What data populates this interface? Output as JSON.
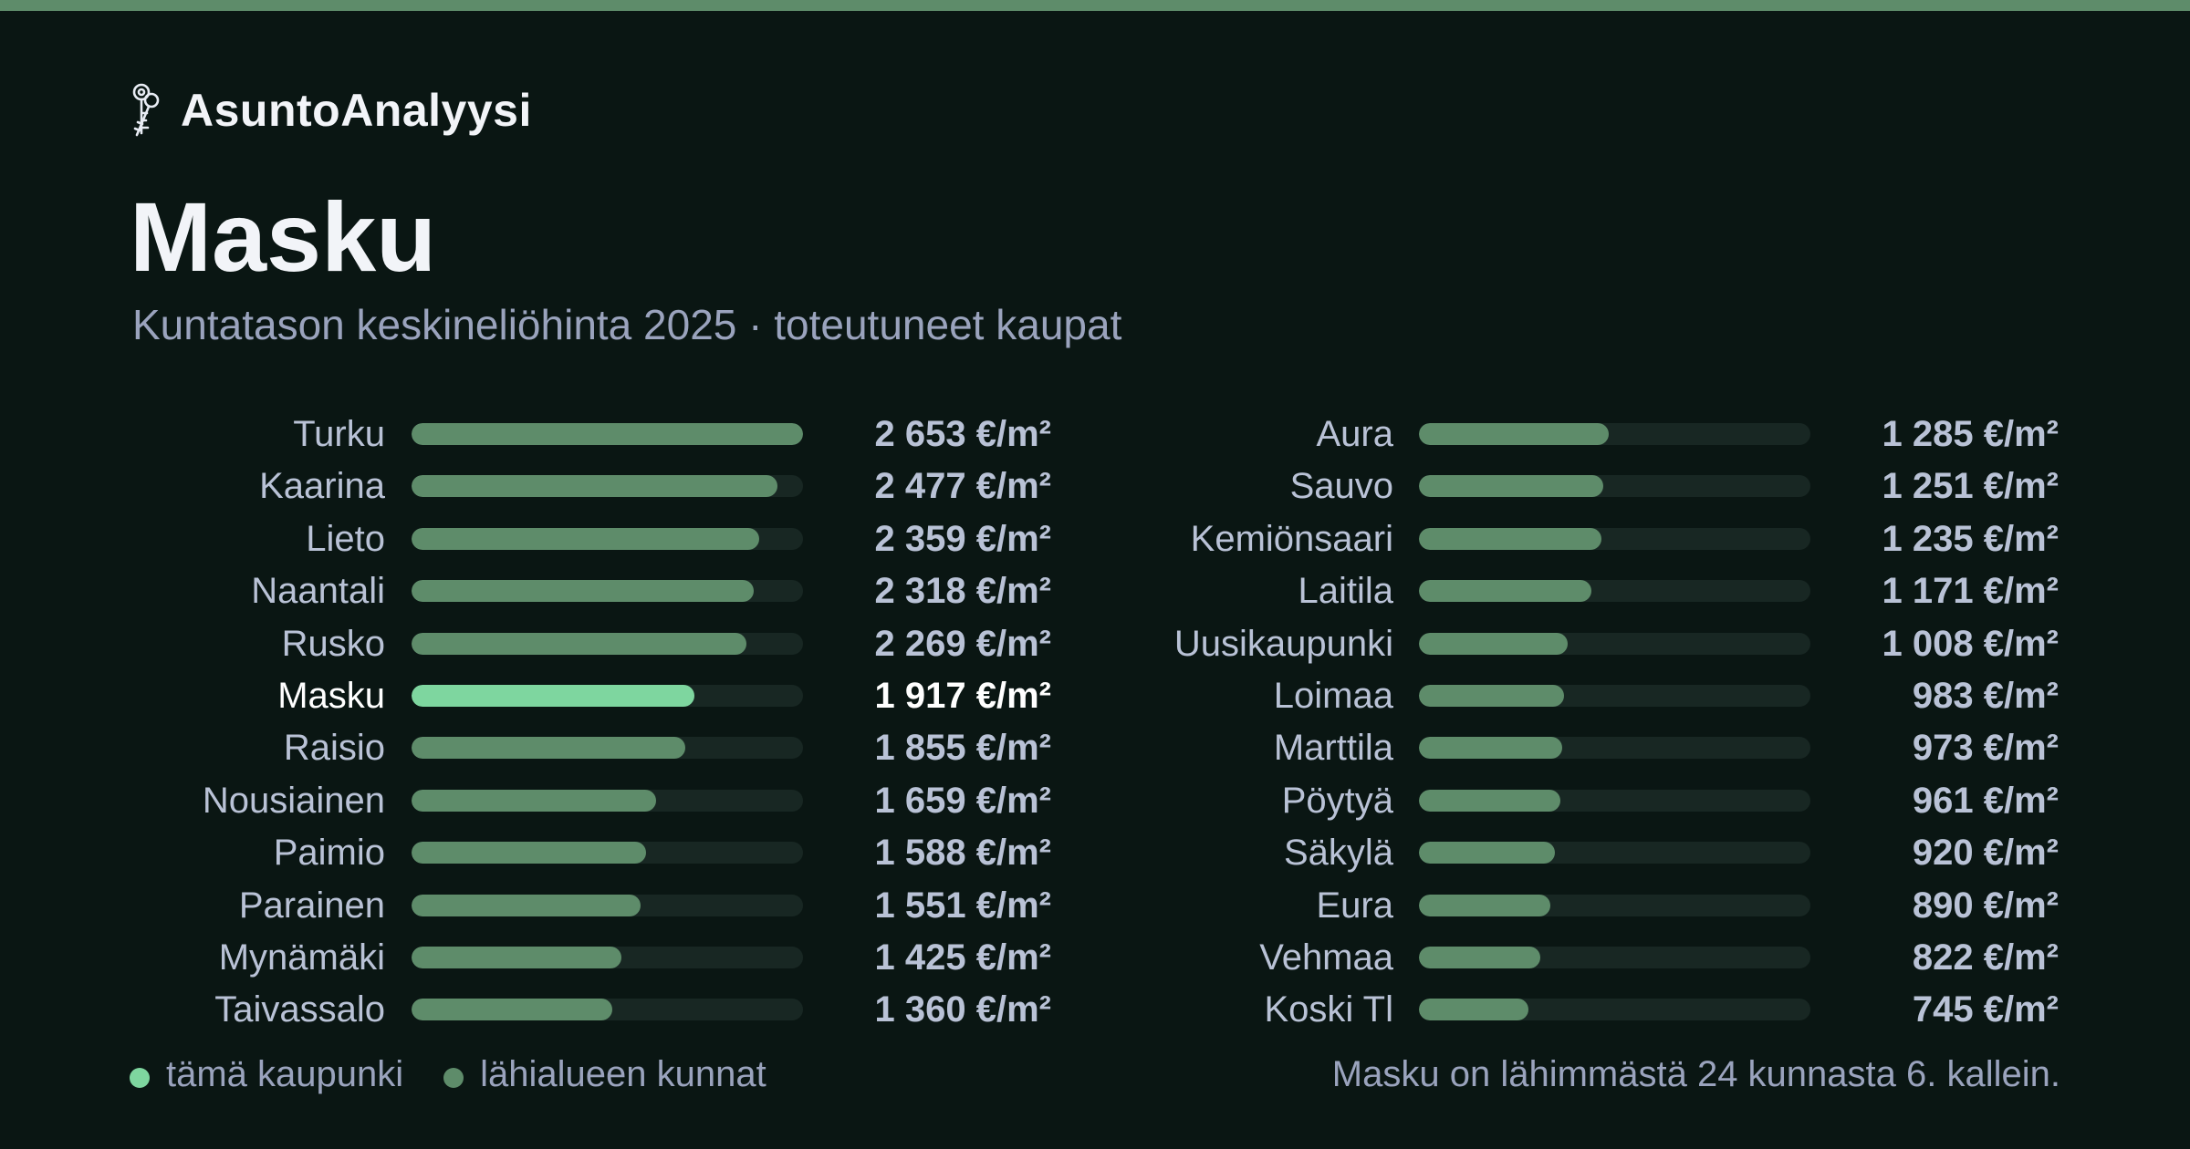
{
  "brand": {
    "name": "AsuntoAnalyysi",
    "icon": "keys-icon"
  },
  "title": "Masku",
  "subtitle": "Kuntatason keskineliöhinta 2025 · toteutuneet kaupat",
  "colors": {
    "background": "#0a1613",
    "accent_stripe": "#5e8c6a",
    "highlight": "#7ed69f",
    "bar": "#5e8c6a",
    "track": "#182723",
    "text": "#b9c2d6"
  },
  "legend": {
    "this_city": "tämä kaupunki",
    "nearby": "lähialueen kunnat"
  },
  "footnote": "Masku on lähimmästä 24 kunnasta 6. kallein.",
  "chart_data": {
    "type": "bar",
    "orientation": "horizontal",
    "unit": "€/m²",
    "highlight": "Masku",
    "xlim": [
      0,
      2653
    ],
    "columns": [
      {
        "categories": [
          "Turku",
          "Kaarina",
          "Lieto",
          "Naantali",
          "Rusko",
          "Masku",
          "Raisio",
          "Nousiainen",
          "Paimio",
          "Parainen",
          "Mynämäki",
          "Taivassalo"
        ],
        "values": [
          2653,
          2477,
          2359,
          2318,
          2269,
          1917,
          1855,
          1659,
          1588,
          1551,
          1425,
          1360
        ],
        "labels": [
          "2 653 €/m²",
          "2 477 €/m²",
          "2 359 €/m²",
          "2 318 €/m²",
          "2 269 €/m²",
          "1 917 €/m²",
          "1 855 €/m²",
          "1 659 €/m²",
          "1 588 €/m²",
          "1 551 €/m²",
          "1 425 €/m²",
          "1 360 €/m²"
        ]
      },
      {
        "categories": [
          "Aura",
          "Sauvo",
          "Kemiönsaari",
          "Laitila",
          "Uusikaupunki",
          "Loimaa",
          "Marttila",
          "Pöytyä",
          "Säkylä",
          "Eura",
          "Vehmaa",
          "Koski Tl"
        ],
        "values": [
          1285,
          1251,
          1235,
          1171,
          1008,
          983,
          973,
          961,
          920,
          890,
          822,
          745
        ],
        "labels": [
          "1 285 €/m²",
          "1 251 €/m²",
          "1 235 €/m²",
          "1 171 €/m²",
          "1 008 €/m²",
          "983 €/m²",
          "973 €/m²",
          "961 €/m²",
          "920 €/m²",
          "890 €/m²",
          "822 €/m²",
          "745 €/m²"
        ]
      }
    ]
  }
}
